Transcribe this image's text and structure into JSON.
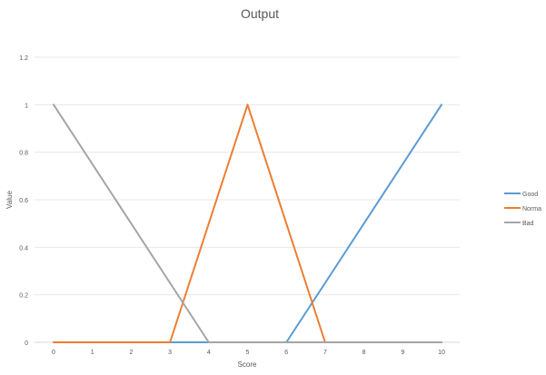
{
  "chart_data": {
    "type": "line",
    "title": "Output",
    "xlabel": "Score",
    "ylabel": "Value",
    "x_ticks": [
      "0",
      "1",
      "2",
      "3",
      "4",
      "5",
      "6",
      "7",
      "8",
      "9",
      "10"
    ],
    "y_ticks": [
      "0",
      "0.2",
      "0.4",
      "0.6",
      "0.8",
      "1",
      "1.2"
    ],
    "xlim": [
      0,
      10
    ],
    "ylim": [
      0,
      1.2
    ],
    "grid": true,
    "legend_position": "right",
    "series": [
      {
        "name": "Good",
        "color": "#5b9bd5",
        "points": [
          [
            0,
            0
          ],
          [
            6,
            0
          ],
          [
            10,
            1
          ]
        ]
      },
      {
        "name": "Norma",
        "color": "#ed7d31",
        "points": [
          [
            0,
            0
          ],
          [
            3,
            0
          ],
          [
            5,
            1
          ],
          [
            7,
            0
          ],
          [
            10,
            0
          ]
        ]
      },
      {
        "name": "Bad",
        "color": "#a5a5a5",
        "points": [
          [
            0,
            1
          ],
          [
            4,
            0
          ],
          [
            10,
            0
          ]
        ]
      }
    ]
  }
}
